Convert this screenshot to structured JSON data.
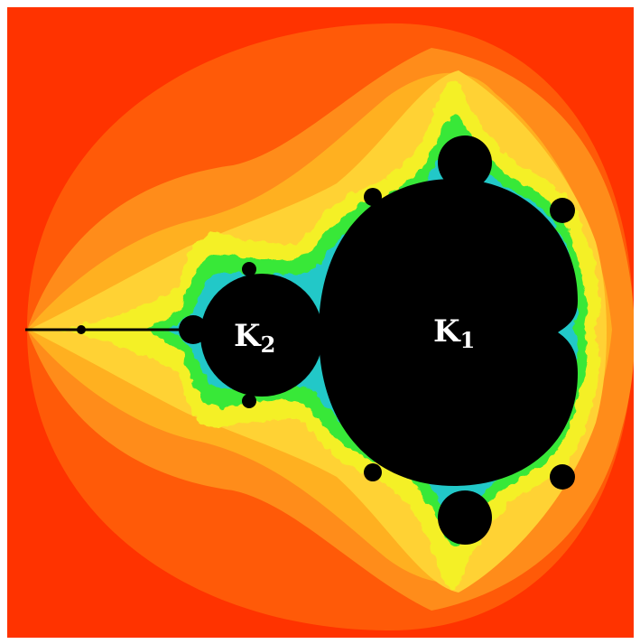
{
  "labels": {
    "k1": {
      "main": "K",
      "sub": "1"
    },
    "k2": {
      "main": "K",
      "sub": "2"
    }
  },
  "colors": {
    "background": "#ff3300",
    "band_outer": "#ff5a08",
    "band_mid1": "#ff8c1a",
    "band_mid2": "#ffb020",
    "band_inner": "#ffd234",
    "yellow": "#f4f028",
    "green": "#38e838",
    "cyan": "#20c8c8",
    "set": "#000000",
    "label": "#ffffff"
  }
}
